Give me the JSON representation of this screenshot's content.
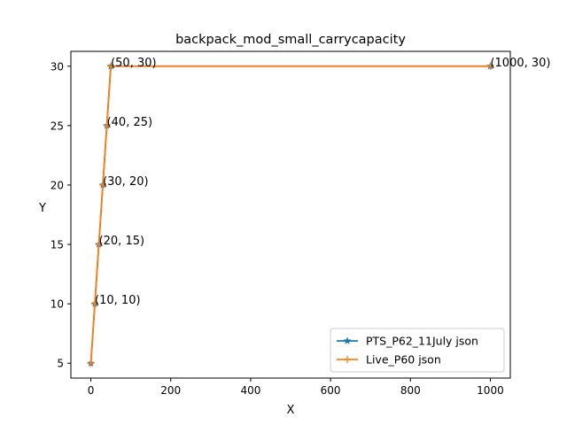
{
  "chart_data": {
    "type": "line",
    "title": "backpack_mod_small_carrycapacity",
    "xlabel": "X",
    "ylabel": "Y",
    "xlim": [
      -50,
      1050
    ],
    "ylim": [
      3.75,
      31.25
    ],
    "xticks": [
      0,
      200,
      400,
      600,
      800,
      1000
    ],
    "yticks": [
      5,
      10,
      15,
      20,
      25,
      30
    ],
    "grid": false,
    "legend_position": "lower right",
    "series": [
      {
        "name": "PTS_P62_11July json",
        "color": "#1f77b4",
        "marker": "star",
        "x": [
          0,
          10,
          20,
          30,
          40,
          50,
          1000
        ],
        "y": [
          5,
          10,
          15,
          20,
          25,
          30,
          30
        ]
      },
      {
        "name": "Live_P60 json",
        "color": "#ff7f0e",
        "marker": "plus",
        "x": [
          0,
          10,
          20,
          30,
          40,
          50,
          1000
        ],
        "y": [
          5,
          10,
          15,
          20,
          25,
          30,
          30
        ]
      }
    ],
    "annotations": [
      {
        "x": 10,
        "y": 10,
        "text": "(10, 10)"
      },
      {
        "x": 20,
        "y": 15,
        "text": "(20, 15)"
      },
      {
        "x": 30,
        "y": 20,
        "text": "(30, 20)"
      },
      {
        "x": 40,
        "y": 25,
        "text": "(40, 25)"
      },
      {
        "x": 50,
        "y": 30,
        "text": "(50, 30)"
      },
      {
        "x": 1000,
        "y": 30,
        "text": "(1000, 30)"
      }
    ]
  }
}
